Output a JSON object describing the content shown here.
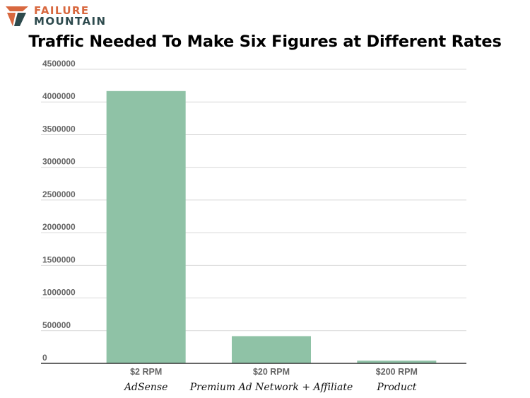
{
  "brand": {
    "line1": "FAILURE",
    "line2": "MOUNTAIN",
    "colors": {
      "orange": "#d8683f",
      "teal": "#2d4a4d"
    }
  },
  "chart_data": {
    "type": "bar",
    "title": "Traffic Needed To Make Six Figures at Different Rates",
    "categories": [
      "$2 RPM",
      "$20 RPM",
      "$200 RPM"
    ],
    "sublabels": [
      "AdSense",
      "Premium Ad Network + Affiliate",
      "Product"
    ],
    "values": [
      4166667,
      416667,
      41667
    ],
    "ylim": [
      0,
      4500000
    ],
    "yticks": [
      0,
      500000,
      1000000,
      1500000,
      2000000,
      2500000,
      3000000,
      3500000,
      4000000,
      4500000
    ],
    "xlabel": "",
    "ylabel": "",
    "grid": true,
    "bar_color": "#8fc2a6"
  }
}
